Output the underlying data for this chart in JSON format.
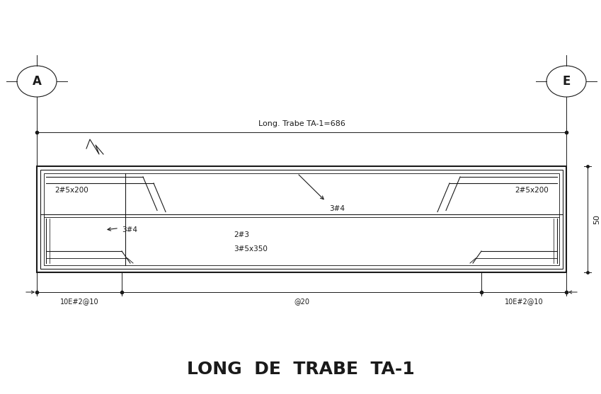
{
  "bg_color": "#ffffff",
  "line_color": "#1a1a1a",
  "title": "LONG  DE  TRABE  TA-1",
  "title_fontsize": 18,
  "dim_label": "Long. Trabe TA-1=686",
  "label_50": "50",
  "label_A": "A",
  "label_E": "E",
  "labels": {
    "2#5x200_left": "2#5x200",
    "2#5x200_right": "2#5x200",
    "3#4_top": "3#4",
    "3#4_bot": "3#4",
    "2#3": "2#3",
    "3#5x350": "3#5x350",
    "10E_left": "10E#2@10",
    "10E_right": "10E#2@10",
    "at20": "@20"
  }
}
